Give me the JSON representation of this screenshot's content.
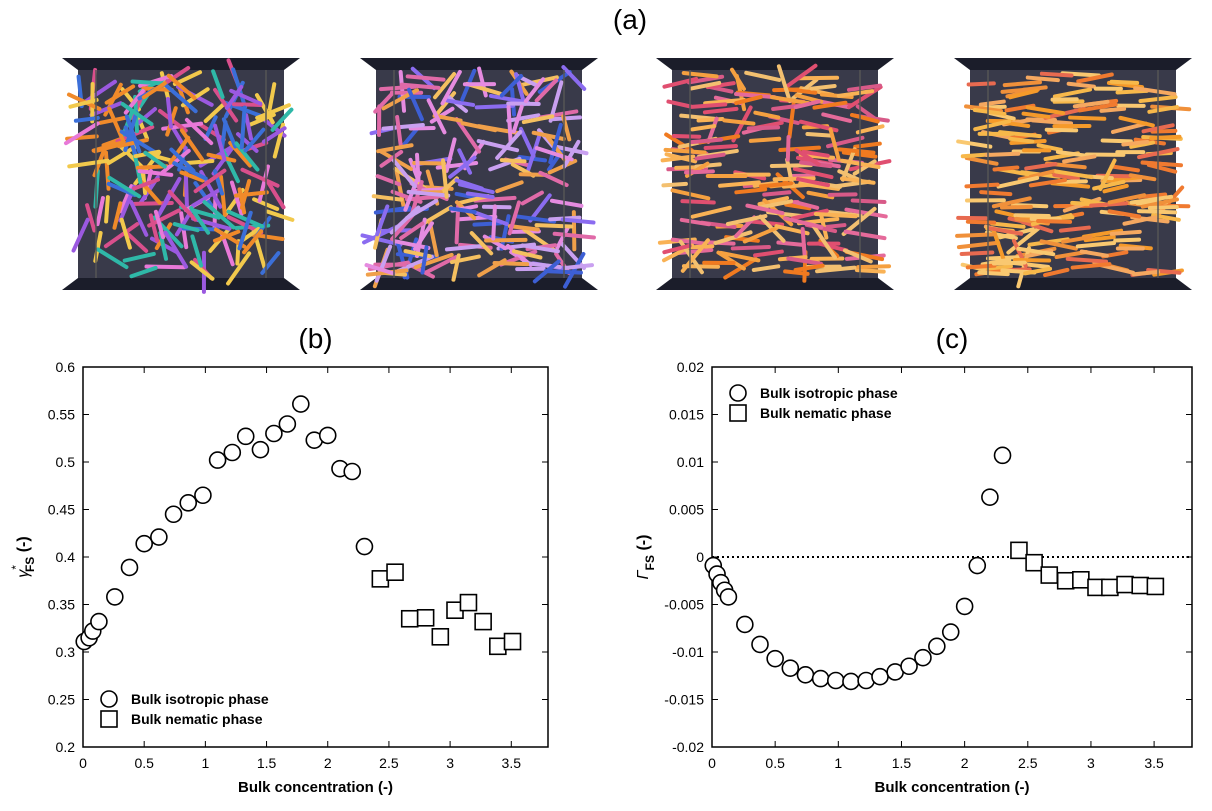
{
  "figure": {
    "panel_a_label": "(a)",
    "snapshots": [
      {
        "name": "snapshot-1",
        "palette": [
          "#e879d8",
          "#f08a2a",
          "#3b6fd8",
          "#9b59e0",
          "#2fb8a8",
          "#f2c94c",
          "#d94f8c"
        ]
      },
      {
        "name": "snapshot-2",
        "palette": [
          "#8b6cf0",
          "#e58be0",
          "#3d5fd4",
          "#f0a04a",
          "#e06aa8",
          "#c9a0f0",
          "#f5c060"
        ]
      },
      {
        "name": "snapshot-3",
        "palette": [
          "#f07a20",
          "#f5a040",
          "#e56a9a",
          "#f3c070",
          "#e04f70",
          "#f9b255",
          "#d85a88"
        ]
      },
      {
        "name": "snapshot-4",
        "palette": [
          "#f59a2a",
          "#f7b84a",
          "#f07a30",
          "#f9c870",
          "#e86a50",
          "#f5a860",
          "#f0903a"
        ]
      }
    ]
  },
  "chart_data": [
    {
      "type": "scatter",
      "panel_label": "(b)",
      "xlabel": "Bulk concentration (-)",
      "ylabel_main": "γ",
      "ylabel_sup": "*",
      "ylabel_sub": "FS",
      "ylabel_suffix": " (-)",
      "xlim": [
        0,
        3.8
      ],
      "ylim": [
        0.2,
        0.6
      ],
      "xticks": [
        0,
        0.5,
        1,
        1.5,
        2,
        2.5,
        3,
        3.5
      ],
      "xtick_labels": [
        "0",
        "0.5",
        "1",
        "1.5",
        "2",
        "2.5",
        "3",
        "3.5"
      ],
      "yticks": [
        0.2,
        0.25,
        0.3,
        0.35,
        0.4,
        0.45,
        0.5,
        0.55,
        0.6
      ],
      "ytick_labels": [
        "0.2",
        "0.25",
        "0.3",
        "0.35",
        "0.4",
        "0.45",
        "0.5",
        "0.55",
        "0.6"
      ],
      "legend_position": "bottom-left",
      "reference_line": null,
      "series": [
        {
          "name": "Bulk isotropic phase",
          "marker": "circle",
          "x": [
            0.01,
            0.05,
            0.08,
            0.13,
            0.26,
            0.38,
            0.5,
            0.62,
            0.74,
            0.86,
            0.98,
            1.1,
            1.22,
            1.33,
            1.45,
            1.56,
            1.67,
            1.78,
            1.89,
            2.0,
            2.1,
            2.2,
            2.3
          ],
          "y": [
            0.311,
            0.315,
            0.322,
            0.332,
            0.358,
            0.389,
            0.414,
            0.421,
            0.445,
            0.457,
            0.465,
            0.502,
            0.51,
            0.527,
            0.513,
            0.53,
            0.54,
            0.561,
            0.523,
            0.528,
            0.493,
            0.49,
            0.411
          ]
        },
        {
          "name": "Bulk nematic phase",
          "marker": "square",
          "x": [
            2.43,
            2.55,
            2.67,
            2.8,
            2.92,
            3.04,
            3.15,
            3.27,
            3.39,
            3.51
          ],
          "y": [
            0.377,
            0.384,
            0.335,
            0.336,
            0.316,
            0.344,
            0.352,
            0.332,
            0.306,
            0.311
          ]
        }
      ]
    },
    {
      "type": "scatter",
      "panel_label": "(c)",
      "xlabel": "Bulk concentration (-)",
      "ylabel_main": "Γ",
      "ylabel_sup": "",
      "ylabel_sub": "FS",
      "ylabel_suffix": " (-)",
      "xlim": [
        0,
        3.8
      ],
      "ylim": [
        -0.02,
        0.02
      ],
      "xticks": [
        0,
        0.5,
        1,
        1.5,
        2,
        2.5,
        3,
        3.5
      ],
      "xtick_labels": [
        "0",
        "0.5",
        "1",
        "1.5",
        "2",
        "2.5",
        "3",
        "3.5"
      ],
      "yticks": [
        -0.02,
        -0.015,
        -0.01,
        -0.005,
        0,
        0.005,
        0.01,
        0.015,
        0.02
      ],
      "ytick_labels": [
        "-0.02",
        "-0.015",
        "-0.01",
        "-0.005",
        "0",
        "0.005",
        "0.01",
        "0.015",
        "0.02"
      ],
      "legend_position": "top-left",
      "reference_line": 0,
      "series": [
        {
          "name": "Bulk isotropic phase",
          "marker": "circle",
          "x": [
            0.01,
            0.04,
            0.07,
            0.1,
            0.13,
            0.26,
            0.38,
            0.5,
            0.62,
            0.74,
            0.86,
            0.98,
            1.1,
            1.22,
            1.33,
            1.45,
            1.56,
            1.67,
            1.78,
            1.89,
            2.0,
            2.1,
            2.2,
            2.3
          ],
          "y": [
            -0.0009,
            -0.0018,
            -0.0027,
            -0.0035,
            -0.0042,
            -0.0071,
            -0.0092,
            -0.0107,
            -0.0117,
            -0.0124,
            -0.0128,
            -0.013,
            -0.0131,
            -0.013,
            -0.0126,
            -0.0121,
            -0.0115,
            -0.0106,
            -0.0094,
            -0.0079,
            -0.0052,
            -0.0009,
            0.0063,
            0.0107
          ]
        },
        {
          "name": "Bulk nematic phase",
          "marker": "square",
          "x": [
            2.43,
            2.55,
            2.67,
            2.8,
            2.92,
            3.04,
            3.15,
            3.27,
            3.39,
            3.51
          ],
          "y": [
            0.0007,
            -0.0006,
            -0.0019,
            -0.0025,
            -0.0024,
            -0.0032,
            -0.0032,
            -0.0029,
            -0.003,
            -0.0031
          ]
        }
      ]
    }
  ]
}
